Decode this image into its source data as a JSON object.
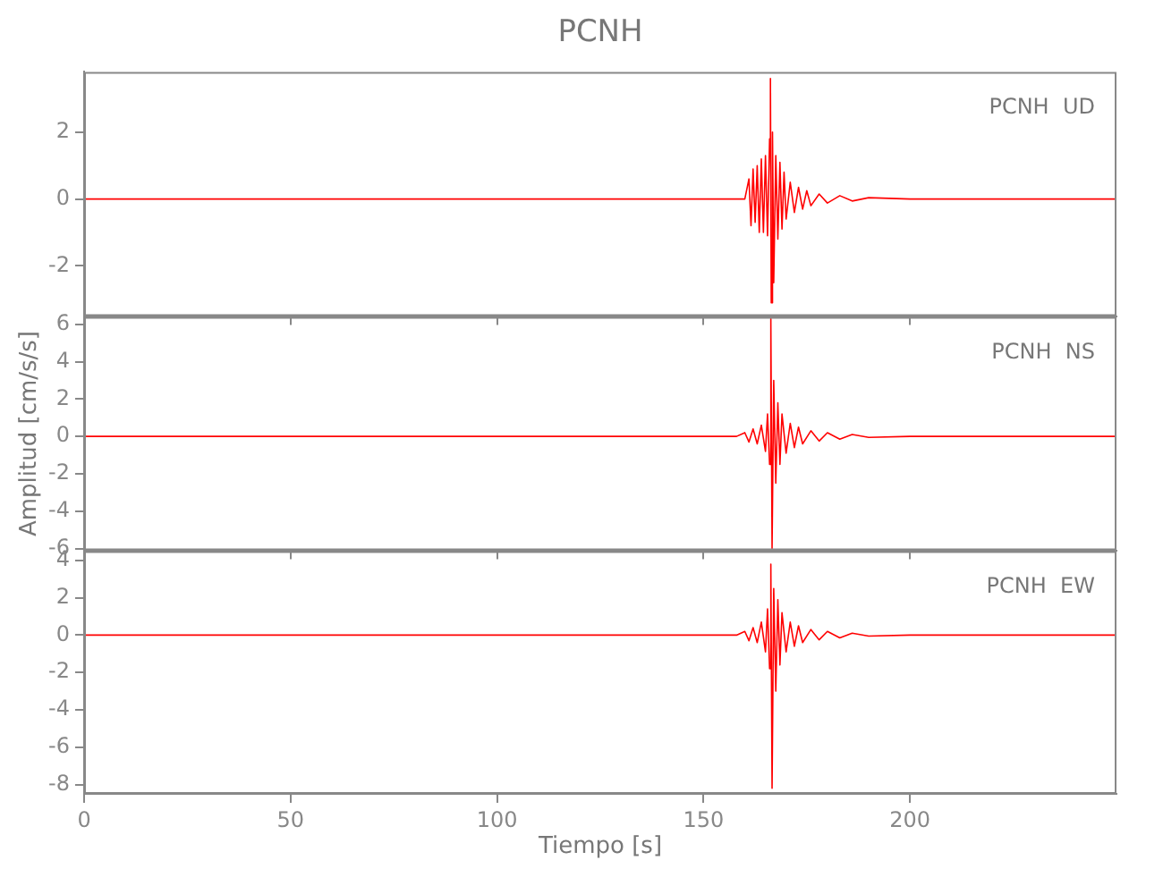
{
  "chart_data": [
    {
      "type": "line",
      "title": "PCNH",
      "annotations": [
        "PCNH  UD"
      ],
      "xlim": [
        0,
        250
      ],
      "xticks": [
        0,
        50,
        100,
        150,
        200
      ],
      "ylim": [
        -3.5,
        3.8
      ],
      "yticks": [
        -2,
        0,
        2
      ],
      "tick_labels": "y",
      "series": [
        {
          "color": "#ff0000",
          "x": [
            0,
            40,
            80,
            120,
            160,
            161,
            161.5,
            162,
            162.5,
            163,
            163.5,
            164,
            164.5,
            165,
            165.5,
            166,
            166.2,
            166.4,
            166.7,
            167,
            167.5,
            168,
            168.5,
            169,
            169.5,
            170,
            171,
            172,
            173,
            174,
            175,
            176,
            178,
            180,
            183,
            186,
            190,
            200,
            250
          ],
          "values": [
            0,
            0,
            0,
            0,
            0,
            0.6,
            -0.8,
            0.9,
            -0.7,
            1.0,
            -1.0,
            1.2,
            -1.0,
            1.3,
            -1.1,
            1.8,
            3.6,
            -3.1,
            2.0,
            -2.5,
            1.3,
            -1.2,
            1.1,
            -0.9,
            0.8,
            -0.6,
            0.5,
            -0.4,
            0.35,
            -0.3,
            0.25,
            -0.2,
            0.15,
            -0.12,
            0.1,
            -0.06,
            0.04,
            0,
            0
          ]
        }
      ]
    },
    {
      "type": "line",
      "ylabel": "Amplitud [cm/s/s]",
      "annotations": [
        "PCNH  NS"
      ],
      "xlim": [
        0,
        250
      ],
      "xticks": [
        0,
        50,
        100,
        150,
        200
      ],
      "ylim": [
        -6.1,
        6.4
      ],
      "yticks": [
        -6,
        -4,
        -2,
        0,
        2,
        4,
        6
      ],
      "tick_labels": "y",
      "series": [
        {
          "color": "#ff0000",
          "x": [
            0,
            40,
            80,
            120,
            158,
            160,
            161,
            162,
            163,
            164,
            165,
            165.5,
            166,
            166.3,
            166.6,
            167,
            167.5,
            168,
            168.5,
            169,
            170,
            171,
            172,
            173,
            174,
            176,
            178,
            180,
            183,
            186,
            190,
            200,
            250
          ],
          "values": [
            0,
            0,
            0,
            0,
            0,
            0.2,
            -0.3,
            0.4,
            -0.4,
            0.6,
            -0.8,
            1.2,
            -1.5,
            6.3,
            -6.0,
            3.0,
            -2.5,
            1.8,
            -1.5,
            1.2,
            -0.9,
            0.7,
            -0.6,
            0.5,
            -0.4,
            0.3,
            -0.25,
            0.2,
            -0.15,
            0.1,
            -0.05,
            0,
            0
          ]
        }
      ]
    },
    {
      "type": "line",
      "xlabel": "Tiempo [s]",
      "annotations": [
        "PCNH  EW"
      ],
      "xlim": [
        0,
        250
      ],
      "xticks": [
        0,
        50,
        100,
        150,
        200
      ],
      "ylim": [
        -8.5,
        4.5
      ],
      "yticks": [
        -8,
        -6,
        -4,
        -2,
        0,
        2,
        4
      ],
      "series": [
        {
          "color": "#ff0000",
          "x": [
            0,
            40,
            80,
            120,
            158,
            160,
            161,
            162,
            163,
            164,
            165,
            165.5,
            166,
            166.3,
            166.6,
            167,
            167.5,
            168,
            168.5,
            169,
            170,
            171,
            172,
            173,
            174,
            176,
            178,
            180,
            183,
            186,
            190,
            200,
            250
          ],
          "values": [
            0,
            0,
            0,
            0,
            0,
            0.2,
            -0.3,
            0.4,
            -0.4,
            0.7,
            -0.9,
            1.4,
            -1.8,
            3.8,
            -8.2,
            2.5,
            -3.0,
            1.9,
            -1.6,
            1.2,
            -0.9,
            0.7,
            -0.6,
            0.5,
            -0.4,
            0.3,
            -0.25,
            0.2,
            -0.15,
            0.1,
            -0.05,
            0,
            0
          ]
        }
      ]
    }
  ]
}
